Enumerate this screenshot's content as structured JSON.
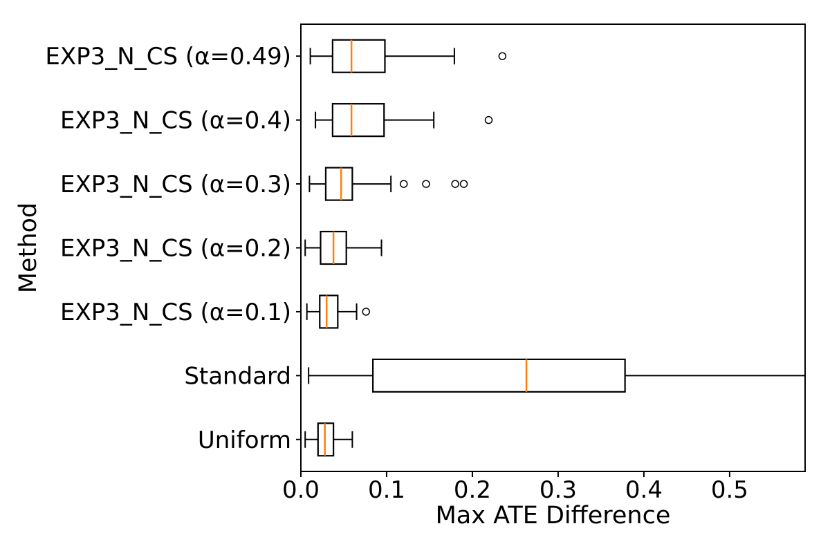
{
  "chart_data": {
    "type": "boxplot",
    "orientation": "horizontal",
    "title": "",
    "xlabel": "Max ATE Difference",
    "ylabel": "Method",
    "xlim": [
      0.0,
      0.588
    ],
    "xtick_values": [
      0.0,
      0.1,
      0.2,
      0.3,
      0.4,
      0.5
    ],
    "xtick_labels": [
      "0.0",
      "0.1",
      "0.2",
      "0.3",
      "0.4",
      "0.5"
    ],
    "grid": false,
    "legend": null,
    "colors": {
      "box_edge": "#000000",
      "median": "#ff7f0e",
      "whisker": "#000000",
      "flier_edge": "#000000",
      "background": "#ffffff"
    },
    "categories": [
      "EXP3_N_CS (α=0.49)",
      "EXP3_N_CS (α=0.4)",
      "EXP3_N_CS (α=0.3)",
      "EXP3_N_CS (α=0.2)",
      "EXP3_N_CS (α=0.1)",
      "Standard",
      "Uniform"
    ],
    "boxes": [
      {
        "label": "EXP3_N_CS (α=0.49)",
        "whislo": 0.011,
        "q1": 0.037,
        "med": 0.059,
        "q3": 0.098,
        "whishi": 0.179,
        "whishi_cap": true,
        "fliers": [
          0.235
        ]
      },
      {
        "label": "EXP3_N_CS (α=0.4)",
        "whislo": 0.017,
        "q1": 0.037,
        "med": 0.059,
        "q3": 0.097,
        "whishi": 0.155,
        "whishi_cap": true,
        "fliers": [
          0.219
        ]
      },
      {
        "label": "EXP3_N_CS (α=0.3)",
        "whislo": 0.01,
        "q1": 0.029,
        "med": 0.047,
        "q3": 0.06,
        "whishi": 0.105,
        "whishi_cap": true,
        "fliers": [
          0.12,
          0.146,
          0.18,
          0.19
        ]
      },
      {
        "label": "EXP3_N_CS (α=0.2)",
        "whislo": 0.005,
        "q1": 0.023,
        "med": 0.038,
        "q3": 0.053,
        "whishi": 0.094,
        "whishi_cap": true,
        "fliers": []
      },
      {
        "label": "EXP3_N_CS (α=0.1)",
        "whislo": 0.007,
        "q1": 0.022,
        "med": 0.03,
        "q3": 0.043,
        "whishi": 0.065,
        "whishi_cap": true,
        "fliers": [
          0.076
        ]
      },
      {
        "label": "Standard",
        "whislo": 0.009,
        "q1": 0.084,
        "med": 0.263,
        "q3": 0.378,
        "whishi": 0.588,
        "whishi_cap": false,
        "fliers": []
      },
      {
        "label": "Uniform",
        "whislo": 0.005,
        "q1": 0.02,
        "med": 0.028,
        "q3": 0.038,
        "whishi": 0.06,
        "whishi_cap": true,
        "fliers": []
      }
    ]
  }
}
